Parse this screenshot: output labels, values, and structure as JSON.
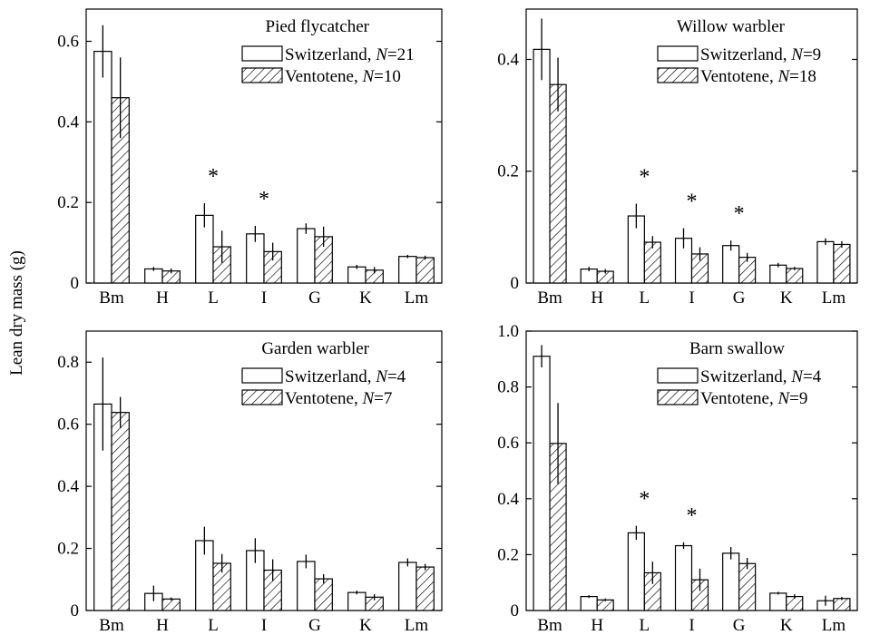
{
  "ylabel": "Lean dry mass (g)",
  "chart_data": [
    {
      "type": "bar",
      "title": "Pied flycatcher",
      "categories": [
        "Bm",
        "H",
        "L",
        "I",
        "G",
        "K",
        "Lm"
      ],
      "ylim": [
        0,
        0.68
      ],
      "yticks": [
        {
          "value": 0,
          "label": "0"
        },
        {
          "value": 0.2,
          "label": "0.2"
        },
        {
          "value": 0.4,
          "label": "0.4"
        },
        {
          "value": 0.6,
          "label": "0.6"
        }
      ],
      "series": [
        {
          "name": "Switzerland, N=21",
          "legend_text": "Switzerland, ",
          "legend_n": "N",
          "legend_val": "=21",
          "pattern": "open",
          "values": [
            0.575,
            0.035,
            0.168,
            0.122,
            0.135,
            0.04,
            0.066
          ],
          "errors": [
            0.065,
            0.005,
            0.03,
            0.02,
            0.013,
            0.005,
            0.004
          ]
        },
        {
          "name": "Ventotene, N=10",
          "legend_text": "Ventotene, ",
          "legend_n": "N",
          "legend_val": "=10",
          "pattern": "hatched",
          "values": [
            0.46,
            0.03,
            0.09,
            0.078,
            0.115,
            0.032,
            0.063
          ],
          "errors": [
            0.1,
            0.006,
            0.04,
            0.022,
            0.025,
            0.008,
            0.005
          ]
        }
      ],
      "significant": [
        "L",
        "I"
      ]
    },
    {
      "type": "bar",
      "title": "Willow warbler",
      "categories": [
        "Bm",
        "H",
        "L",
        "I",
        "G",
        "K",
        "Lm"
      ],
      "ylim": [
        0,
        0.49
      ],
      "yticks": [
        {
          "value": 0,
          "label": "0"
        },
        {
          "value": 0.2,
          "label": "0.2"
        },
        {
          "value": 0.4,
          "label": "0.4"
        }
      ],
      "series": [
        {
          "name": "Switzerland, N=9",
          "legend_text": "Switzerland, ",
          "legend_n": "N",
          "legend_val": "=9",
          "pattern": "open",
          "values": [
            0.418,
            0.025,
            0.12,
            0.08,
            0.067,
            0.032,
            0.074
          ],
          "errors": [
            0.055,
            0.004,
            0.022,
            0.018,
            0.009,
            0.004,
            0.006
          ]
        },
        {
          "name": "Ventotene, N=18",
          "legend_text": "Ventotene, ",
          "legend_n": "N",
          "legend_val": "=18",
          "pattern": "hatched",
          "values": [
            0.355,
            0.021,
            0.073,
            0.052,
            0.046,
            0.026,
            0.069
          ],
          "errors": [
            0.048,
            0.004,
            0.011,
            0.012,
            0.008,
            0.003,
            0.006
          ]
        }
      ],
      "significant": [
        "L",
        "I",
        "G"
      ]
    },
    {
      "type": "bar",
      "title": "Garden warbler",
      "categories": [
        "Bm",
        "H",
        "L",
        "I",
        "G",
        "K",
        "Lm"
      ],
      "ylim": [
        0,
        0.9
      ],
      "yticks": [
        {
          "value": 0,
          "label": "0"
        },
        {
          "value": 0.2,
          "label": "0.2"
        },
        {
          "value": 0.4,
          "label": "0.4"
        },
        {
          "value": 0.6,
          "label": "0.6"
        },
        {
          "value": 0.8,
          "label": "0.8"
        }
      ],
      "series": [
        {
          "name": "Switzerland, N=4",
          "legend_text": "Switzerland, ",
          "legend_n": "N",
          "legend_val": "=4",
          "pattern": "open",
          "values": [
            0.665,
            0.055,
            0.225,
            0.193,
            0.158,
            0.058,
            0.155
          ],
          "errors": [
            0.15,
            0.025,
            0.045,
            0.04,
            0.022,
            0.006,
            0.013
          ]
        },
        {
          "name": "Ventotene, N=7",
          "legend_text": "Ventotene, ",
          "legend_n": "N",
          "legend_val": "=7",
          "pattern": "hatched",
          "values": [
            0.638,
            0.037,
            0.152,
            0.13,
            0.102,
            0.043,
            0.14
          ],
          "errors": [
            0.05,
            0.005,
            0.03,
            0.035,
            0.015,
            0.01,
            0.01
          ]
        }
      ],
      "significant": []
    },
    {
      "type": "bar",
      "title": "Barn swallow",
      "categories": [
        "Bm",
        "H",
        "L",
        "I",
        "G",
        "K",
        "Lm"
      ],
      "ylim": [
        0,
        1.0
      ],
      "yticks": [
        {
          "value": 0,
          "label": "0"
        },
        {
          "value": 0.2,
          "label": "0.2"
        },
        {
          "value": 0.4,
          "label": "0.4"
        },
        {
          "value": 0.6,
          "label": "0.6"
        },
        {
          "value": 0.8,
          "label": "0.8"
        },
        {
          "value": 1.0,
          "label": "1.0"
        }
      ],
      "series": [
        {
          "name": "Switzerland, N=4",
          "legend_text": "Switzerland, ",
          "legend_n": "N",
          "legend_val": "=4",
          "pattern": "open",
          "values": [
            0.91,
            0.05,
            0.278,
            0.232,
            0.205,
            0.062,
            0.035
          ],
          "errors": [
            0.04,
            0.005,
            0.025,
            0.012,
            0.022,
            0.005,
            0.018
          ]
        },
        {
          "name": "Ventotene, N=9",
          "legend_text": "Ventotene, ",
          "legend_n": "N",
          "legend_val": "=9",
          "pattern": "hatched",
          "values": [
            0.598,
            0.038,
            0.135,
            0.11,
            0.168,
            0.05,
            0.043
          ],
          "errors": [
            0.145,
            0.005,
            0.04,
            0.04,
            0.02,
            0.008,
            0.006
          ]
        }
      ],
      "significant": [
        "L",
        "I"
      ]
    }
  ]
}
